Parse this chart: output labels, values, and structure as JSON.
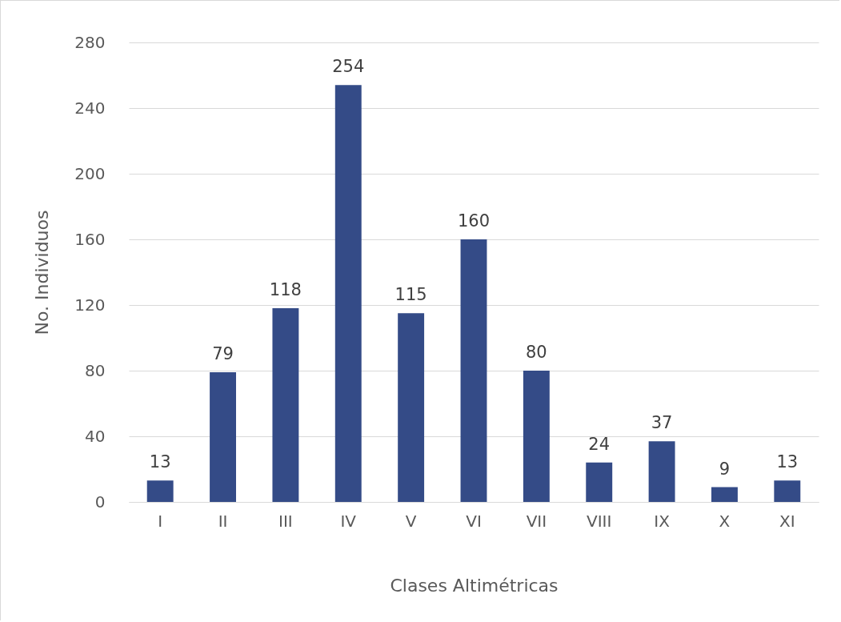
{
  "chart_data": {
    "type": "bar",
    "xlabel": "Clases Altimétricas",
    "ylabel": "No. Individuos",
    "categories": [
      "I",
      "II",
      "III",
      "IV",
      "V",
      "VI",
      "VII",
      "VIII",
      "IX",
      "X",
      "XI"
    ],
    "values": [
      13,
      79,
      118,
      254,
      115,
      160,
      80,
      24,
      37,
      9,
      13
    ],
    "color": "#344b87",
    "ylim": [
      0,
      280
    ],
    "yticks": [
      0,
      40,
      80,
      120,
      160,
      200,
      240,
      280
    ],
    "grid": "y",
    "data_labels": true
  }
}
